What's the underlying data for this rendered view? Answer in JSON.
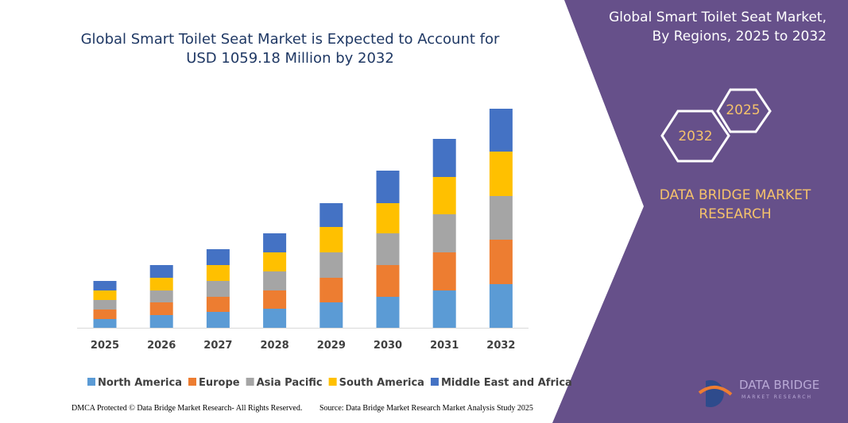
{
  "chart_data": {
    "type": "stacked-bar",
    "title": "Global Smart Toilet Seat Market is Expected to Account for USD 1059.18 Million by 2032",
    "categories": [
      "2025",
      "2026",
      "2027",
      "2028",
      "2029",
      "2030",
      "2031",
      "2032"
    ],
    "series": [
      {
        "name": "North America",
        "color": "#5b9bd5",
        "values": [
          11,
          16,
          20,
          24,
          32,
          39,
          47,
          55
        ]
      },
      {
        "name": "Europe",
        "color": "#ed7d31",
        "values": [
          12,
          16,
          19,
          23,
          31,
          40,
          48,
          56
        ]
      },
      {
        "name": "Asia Pacific",
        "color": "#a5a5a5",
        "values": [
          12,
          15,
          20,
          24,
          32,
          40,
          48,
          55
        ]
      },
      {
        "name": "South America",
        "color": "#ffc000",
        "values": [
          12,
          16,
          20,
          24,
          32,
          38,
          47,
          56
        ]
      },
      {
        "name": "Middle East and Africa",
        "color": "#4472c4",
        "values": [
          12,
          16,
          20,
          24,
          30,
          41,
          48,
          54
        ]
      }
    ]
  },
  "panel": {
    "title": "Global Smart Toilet Seat Market, By Regions, 2025 to 2032",
    "hex_labels": [
      "2032",
      "2025"
    ],
    "brand": "DATA BRIDGE MARKET RESEARCH"
  },
  "logo": {
    "name": "DATA BRIDGE",
    "tagline": "MARKET RESEARCH"
  },
  "footer": {
    "left": "DMCA Protected © Data Bridge Market Research- All Rights Reserved.",
    "right": "Source: Data Bridge Market Research Market Analysis Study 2025"
  }
}
